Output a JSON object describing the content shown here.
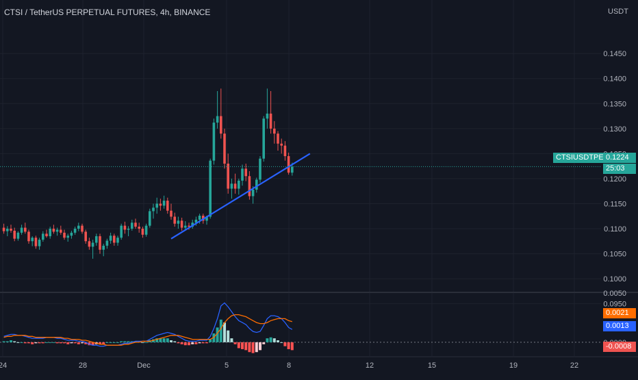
{
  "header": {
    "title": "CTSI / TetherUS PERPETUAL FUTURES, 4h, BINANCE",
    "currency": "USDT"
  },
  "price_tags": {
    "symbol": "CTSIUSDTPERP",
    "last_price": "0.1224",
    "countdown": "25:03"
  },
  "macd_tags": {
    "signal": "0.0021",
    "macd": "0.0013",
    "histogram": "-0.0008"
  },
  "colors": {
    "background": "#131722",
    "up": "#26a69a",
    "down": "#ef5350",
    "trendline": "#2962ff",
    "macd_line": "#2962ff",
    "signal_line": "#ff6d00"
  },
  "chart_data": [
    {
      "type": "candlestick",
      "title": "CTSI / TetherUS PERPETUAL FUTURES, 4h, BINANCE",
      "y_unit": "USDT",
      "ylim": [
        0.0955,
        0.1505
      ],
      "y_ticks": [
        "0.1450",
        "0.1400",
        "0.1350",
        "0.1300",
        "0.1250",
        "0.1200",
        "0.1150",
        "0.1100",
        "0.1050",
        "0.1000",
        "0.0950"
      ],
      "x_ticks": [
        "24",
        "28",
        "Dec",
        "5",
        "8",
        "12",
        "15",
        "19",
        "22"
      ],
      "last_price": 0.1224,
      "ohlc": [
        [
          0.1102,
          0.111,
          0.109,
          0.1095
        ],
        [
          0.1095,
          0.1105,
          0.1085,
          0.11
        ],
        [
          0.11,
          0.1108,
          0.1092,
          0.1096
        ],
        [
          0.1096,
          0.1102,
          0.1075,
          0.108
        ],
        [
          0.108,
          0.1095,
          0.1076,
          0.1092
        ],
        [
          0.1092,
          0.1108,
          0.1088,
          0.1102
        ],
        [
          0.1102,
          0.1112,
          0.109,
          0.1094
        ],
        [
          0.1094,
          0.1098,
          0.107,
          0.1075
        ],
        [
          0.1075,
          0.1085,
          0.1065,
          0.1082
        ],
        [
          0.1082,
          0.1086,
          0.106,
          0.1065
        ],
        [
          0.1065,
          0.1082,
          0.1058,
          0.1078
        ],
        [
          0.1078,
          0.1095,
          0.1074,
          0.109
        ],
        [
          0.109,
          0.1098,
          0.1082,
          0.1085
        ],
        [
          0.1085,
          0.1104,
          0.108,
          0.11
        ],
        [
          0.11,
          0.1108,
          0.109,
          0.1094
        ],
        [
          0.1094,
          0.1102,
          0.1086,
          0.1098
        ],
        [
          0.1098,
          0.1106,
          0.1088,
          0.1092
        ],
        [
          0.1092,
          0.1098,
          0.1078,
          0.1082
        ],
        [
          0.1082,
          0.109,
          0.1074,
          0.1086
        ],
        [
          0.1086,
          0.1096,
          0.108,
          0.1092
        ],
        [
          0.1092,
          0.1104,
          0.1088,
          0.11
        ],
        [
          0.11,
          0.1112,
          0.1095,
          0.1106
        ],
        [
          0.1106,
          0.111,
          0.109,
          0.1094
        ],
        [
          0.1094,
          0.1098,
          0.107,
          0.1075
        ],
        [
          0.1075,
          0.1082,
          0.1058,
          0.1064
        ],
        [
          0.1064,
          0.1078,
          0.104,
          0.1072
        ],
        [
          0.1072,
          0.109,
          0.1066,
          0.1085
        ],
        [
          0.1085,
          0.109,
          0.105,
          0.1058
        ],
        [
          0.1058,
          0.107,
          0.1045,
          0.1066
        ],
        [
          0.1066,
          0.108,
          0.106,
          0.1076
        ],
        [
          0.1076,
          0.1092,
          0.107,
          0.1086
        ],
        [
          0.1086,
          0.109,
          0.1066,
          0.1072
        ],
        [
          0.1072,
          0.1086,
          0.1066,
          0.1082
        ],
        [
          0.1082,
          0.111,
          0.1078,
          0.1106
        ],
        [
          0.1106,
          0.1114,
          0.109,
          0.1098
        ],
        [
          0.1098,
          0.1105,
          0.1085,
          0.11
        ],
        [
          0.11,
          0.1118,
          0.1096,
          0.1112
        ],
        [
          0.1112,
          0.112,
          0.11,
          0.1104
        ],
        [
          0.1104,
          0.1112,
          0.1092,
          0.11
        ],
        [
          0.11,
          0.1104,
          0.1082,
          0.1088
        ],
        [
          0.1088,
          0.111,
          0.1084,
          0.1106
        ],
        [
          0.1106,
          0.114,
          0.1102,
          0.1135
        ],
        [
          0.1135,
          0.115,
          0.112,
          0.1142
        ],
        [
          0.1142,
          0.1162,
          0.113,
          0.115
        ],
        [
          0.115,
          0.116,
          0.1136,
          0.1146
        ],
        [
          0.1146,
          0.1166,
          0.114,
          0.1156
        ],
        [
          0.1156,
          0.1162,
          0.113,
          0.1136
        ],
        [
          0.1136,
          0.115,
          0.1118,
          0.1124
        ],
        [
          0.1124,
          0.1132,
          0.1104,
          0.111
        ],
        [
          0.111,
          0.1124,
          0.11,
          0.1116
        ],
        [
          0.1116,
          0.1122,
          0.1096,
          0.1102
        ],
        [
          0.1102,
          0.1115,
          0.1096,
          0.1106
        ],
        [
          0.1106,
          0.1112,
          0.1098,
          0.1104
        ],
        [
          0.1104,
          0.1118,
          0.11,
          0.1112
        ],
        [
          0.1112,
          0.1124,
          0.1106,
          0.1118
        ],
        [
          0.1118,
          0.113,
          0.111,
          0.1126
        ],
        [
          0.1126,
          0.113,
          0.111,
          0.1116
        ],
        [
          0.1116,
          0.1126,
          0.1108,
          0.1124
        ],
        [
          0.1124,
          0.124,
          0.112,
          0.1236
        ],
        [
          0.1236,
          0.132,
          0.1228,
          0.1312
        ],
        [
          0.1312,
          0.1375,
          0.13,
          0.1325
        ],
        [
          0.1325,
          0.138,
          0.128,
          0.129
        ],
        [
          0.129,
          0.13,
          0.122,
          0.123
        ],
        [
          0.123,
          0.125,
          0.117,
          0.118
        ],
        [
          0.118,
          0.12,
          0.116,
          0.119
        ],
        [
          0.119,
          0.121,
          0.117,
          0.118
        ],
        [
          0.118,
          0.12,
          0.1168,
          0.1196
        ],
        [
          0.1196,
          0.1228,
          0.1186,
          0.122
        ],
        [
          0.122,
          0.123,
          0.1195,
          0.1205
        ],
        [
          0.1205,
          0.1215,
          0.1158,
          0.1165
        ],
        [
          0.1165,
          0.1185,
          0.115,
          0.1178
        ],
        [
          0.1178,
          0.1202,
          0.1172,
          0.1198
        ],
        [
          0.1198,
          0.1245,
          0.1192,
          0.124
        ],
        [
          0.124,
          0.1325,
          0.1234,
          0.132
        ],
        [
          0.132,
          0.138,
          0.13,
          0.133
        ],
        [
          0.133,
          0.1375,
          0.129,
          0.13
        ],
        [
          0.13,
          0.1315,
          0.127,
          0.129
        ],
        [
          0.129,
          0.1295,
          0.1256,
          0.127
        ],
        [
          0.127,
          0.128,
          0.125,
          0.1266
        ],
        [
          0.1266,
          0.1275,
          0.1236,
          0.1245
        ],
        [
          0.1245,
          0.1252,
          0.1208,
          0.1212
        ],
        [
          0.1212,
          0.1232,
          0.1206,
          0.1224
        ]
      ],
      "annotations": [
        {
          "type": "trendline",
          "from": [
            47,
            0.108
          ],
          "to": [
            86,
            0.125
          ]
        }
      ]
    },
    {
      "type": "line",
      "title": "MACD",
      "ylim": [
        -0.0014,
        0.005
      ],
      "y_ticks": [
        "0.0050",
        "0.0000"
      ],
      "series": [
        {
          "values": [
            0.0006,
            0.0007,
            0.0008,
            0.0008,
            0.0007,
            0.0007,
            0.0006,
            0.0005,
            0.0004,
            0.0004,
            0.0004,
            0.0004,
            0.0005,
            0.0005,
            0.0005,
            0.0004,
            0.0004,
            0.0003,
            0.0002,
            0.0002,
            0.0002,
            0.0001,
            0.0001,
            0.0,
            -0.0002,
            -0.0003,
            -0.0003,
            -0.0004,
            -0.0004,
            -0.0003,
            -0.0003,
            -0.0003,
            -0.0003,
            -0.0002,
            -0.0001,
            -0.0001,
            0.0,
            0.0001,
            0.0001,
            0.0001,
            0.0001,
            0.0003,
            0.0005,
            0.0007,
            0.0008,
            0.0009,
            0.001,
            0.0009,
            0.0008,
            0.0006,
            0.0004,
            0.0002,
            0.0001,
            0.0001,
            0.0001,
            0.0002,
            0.0002,
            0.0002,
            0.0006,
            0.0014,
            0.0024,
            0.0037,
            0.004,
            0.0036,
            0.0031,
            0.0026,
            0.0022,
            0.002,
            0.0018,
            0.0014,
            0.0011,
            0.001,
            0.0011,
            0.0017,
            0.0024,
            0.0027,
            0.0027,
            0.0026,
            0.0024,
            0.002,
            0.0015,
            0.0013
          ]
        },
        {
          "values": [
            0.0005,
            0.0006,
            0.0006,
            0.0007,
            0.0007,
            0.0007,
            0.0007,
            0.0006,
            0.0006,
            0.0005,
            0.0005,
            0.0005,
            0.0005,
            0.0005,
            0.0005,
            0.0005,
            0.0005,
            0.0004,
            0.0004,
            0.0003,
            0.0003,
            0.0003,
            0.0002,
            0.0002,
            0.0001,
            0.0,
            -0.0001,
            -0.0002,
            -0.0002,
            -0.0003,
            -0.0003,
            -0.0003,
            -0.0003,
            -0.0003,
            -0.0002,
            -0.0002,
            -0.0001,
            0.0,
            0.0,
            0.0001,
            0.0001,
            0.0001,
            0.0002,
            0.0003,
            0.0004,
            0.0005,
            0.0006,
            0.0007,
            0.0007,
            0.0007,
            0.0006,
            0.0005,
            0.0004,
            0.0003,
            0.0003,
            0.0003,
            0.0003,
            0.0003,
            0.0003,
            0.0005,
            0.0009,
            0.0014,
            0.002,
            0.0024,
            0.0027,
            0.0028,
            0.0028,
            0.0027,
            0.0026,
            0.0024,
            0.0022,
            0.002,
            0.0019,
            0.0019,
            0.002,
            0.0022,
            0.0023,
            0.0024,
            0.0024,
            0.0024,
            0.0022,
            0.0021
          ]
        }
      ],
      "histogram": [
        0.0001,
        0.0001,
        0.0002,
        0.0001,
        0.0,
        0.0,
        -0.0001,
        -0.0001,
        -0.0002,
        -0.0001,
        -0.0001,
        -0.0001,
        0.0,
        0.0,
        0.0,
        -0.0001,
        -0.0001,
        -0.0001,
        -0.0002,
        -0.0001,
        -0.0001,
        -0.0002,
        -0.0001,
        -0.0002,
        -0.0003,
        -0.0003,
        -0.0002,
        -0.0002,
        -0.0002,
        0.0,
        0.0,
        0.0,
        0.0,
        0.0001,
        0.0001,
        0.0001,
        0.0001,
        0.0001,
        0.0001,
        0.0,
        0.0,
        0.0002,
        0.0003,
        0.0004,
        0.0004,
        0.0004,
        0.0004,
        0.0002,
        0.0001,
        -0.0001,
        -0.0002,
        -0.0003,
        -0.0003,
        -0.0002,
        -0.0002,
        -0.0001,
        -0.0001,
        -0.0001,
        0.0003,
        0.0009,
        0.0015,
        0.0023,
        0.002,
        0.0012,
        0.0004,
        -0.0002,
        -0.0006,
        -0.0007,
        -0.0008,
        -0.001,
        -0.0011,
        -0.001,
        -0.0008,
        -0.0002,
        0.0004,
        0.0005,
        0.0004,
        0.0002,
        0.0,
        -0.0004,
        -0.0007,
        -0.0008
      ],
      "last_values": {
        "signal": 0.0021,
        "macd": 0.0013,
        "histogram": -0.0008
      }
    }
  ]
}
